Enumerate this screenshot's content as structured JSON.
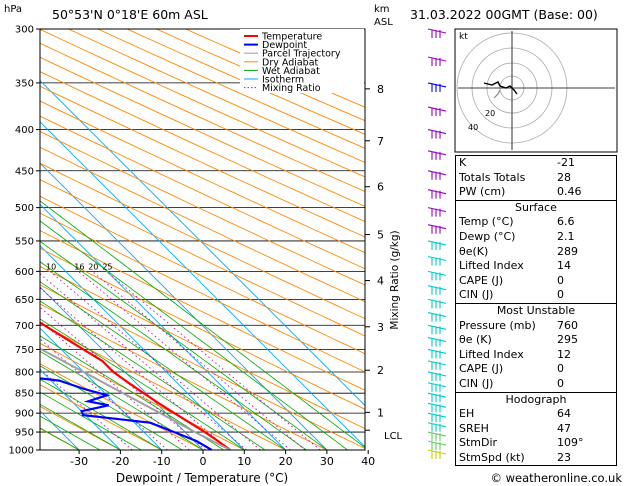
{
  "header": {
    "location": "50°53'N 0°18'E 60m ASL",
    "datetime": "31.03.2022 00GMT (Base: 00)",
    "p_unit": "hPa",
    "km_unit": "km",
    "asl_unit": "ASL",
    "lcl_label": "LCL",
    "mixing_ratio_axis": "Mixing Ratio (g/kg)",
    "credit": "© weatheronline.co.uk"
  },
  "chart_data": {
    "type": "line",
    "xlabel": "Dewpoint / Temperature (°C)",
    "ylabel": "hPa",
    "xlim": [
      -35,
      40
    ],
    "ylim": [
      1000,
      300
    ],
    "x_ticks": [
      -30,
      -20,
      -10,
      0,
      10,
      20,
      30,
      40
    ],
    "pressure_levels": [
      300,
      350,
      400,
      450,
      500,
      550,
      600,
      650,
      700,
      750,
      800,
      850,
      900,
      950,
      1000
    ],
    "height_ticks_km": [
      {
        "label": "8",
        "p": 356
      },
      {
        "label": "7",
        "p": 413
      },
      {
        "label": "6",
        "p": 471
      },
      {
        "label": "5",
        "p": 540
      },
      {
        "label": "4",
        "p": 616
      },
      {
        "label": "3",
        "p": 703
      },
      {
        "label": "2",
        "p": 796
      },
      {
        "label": "1",
        "p": 898
      }
    ],
    "mixing_ratio_labels": [
      "1",
      "2",
      "3",
      "4",
      "6",
      "8",
      "10",
      "16",
      "20",
      "25"
    ],
    "legend": [
      "Temperature",
      "Dewpoint",
      "Parcel Trajectory",
      "Dry Adiabat",
      "Wet Adiabat",
      "Isotherm",
      "Mixing Ratio"
    ],
    "series": [
      {
        "name": "Temperature",
        "color": "#ff0000",
        "points": [
          [
            1000,
            6.6
          ],
          [
            975,
            5.8
          ],
          [
            950,
            4.8
          ],
          [
            925,
            3.4
          ],
          [
            900,
            2.0
          ],
          [
            875,
            0.6
          ],
          [
            850,
            -0.6
          ],
          [
            825,
            -1.8
          ],
          [
            800,
            -2.8
          ],
          [
            775,
            -2.8
          ],
          [
            750,
            -4.6
          ],
          [
            700,
            -8.2
          ],
          [
            650,
            -12.4
          ],
          [
            600,
            -16.8
          ],
          [
            550,
            -21.4
          ],
          [
            500,
            -25.8
          ],
          [
            450,
            -31.0
          ],
          [
            400,
            -37.2
          ],
          [
            350,
            -44.6
          ],
          [
            300,
            -52.4
          ]
        ]
      },
      {
        "name": "Dewpoint",
        "color": "#0000ff",
        "points": [
          [
            1000,
            2.1
          ],
          [
            975,
            0.6
          ],
          [
            950,
            -2.6
          ],
          [
            925,
            -6.2
          ],
          [
            905,
            -20.6
          ],
          [
            895,
            -20.0
          ],
          [
            880,
            -12.0
          ],
          [
            870,
            -16.0
          ],
          [
            855,
            -10.0
          ],
          [
            840,
            -14.0
          ],
          [
            820,
            -18.0
          ],
          [
            810,
            -26.0
          ],
          [
            800,
            -22.0
          ],
          [
            775,
            -24.0
          ],
          [
            750,
            -26.6
          ],
          [
            700,
            -31.0
          ],
          [
            650,
            -34.0
          ],
          [
            640,
            -27.0
          ],
          [
            600,
            -32.0
          ],
          [
            575,
            -40.0
          ],
          [
            550,
            -41.0
          ],
          [
            525,
            -45.0
          ],
          [
            500,
            -55.0
          ],
          [
            450,
            -59.0
          ],
          [
            400,
            -64.0
          ],
          [
            350,
            -69.0
          ],
          [
            300,
            -76.0
          ]
        ]
      },
      {
        "name": "Parcel Trajectory",
        "color": "#a0a0a0",
        "points": [
          [
            1000,
            6.6
          ],
          [
            950,
            2.4
          ],
          [
            900,
            -1.4
          ],
          [
            850,
            -5.6
          ],
          [
            800,
            -10.0
          ],
          [
            750,
            -14.8
          ],
          [
            700,
            -19.6
          ],
          [
            650,
            -24.6
          ],
          [
            600,
            -30.0
          ],
          [
            550,
            -35.4
          ],
          [
            500,
            -41.2
          ],
          [
            450,
            -47.4
          ],
          [
            400,
            -54.2
          ],
          [
            350,
            -61.6
          ],
          [
            300,
            -69.8
          ]
        ]
      }
    ]
  },
  "wind_barb_colors": [
    "#9900cc",
    "#0000ff",
    "#00cccc",
    "#66cc66",
    "#cccc00"
  ],
  "hodograph": {
    "label": "kt",
    "ring_labels": [
      "20",
      "40"
    ],
    "color": "#000000"
  },
  "indices": {
    "basic": [
      {
        "k": "K",
        "v": "-21"
      },
      {
        "k": "Totals Totals",
        "v": "28"
      },
      {
        "k": "PW (cm)",
        "v": "0.46"
      }
    ],
    "surface_title": "Surface",
    "surface": [
      {
        "k": "Temp (°C)",
        "v": "6.6"
      },
      {
        "k": "Dewp (°C)",
        "v": "2.1"
      },
      {
        "k": "θe(K)",
        "v": "289"
      },
      {
        "k": "Lifted Index",
        "v": "14"
      },
      {
        "k": "CAPE (J)",
        "v": "0"
      },
      {
        "k": "CIN (J)",
        "v": "0"
      }
    ],
    "unstable_title": "Most Unstable",
    "unstable": [
      {
        "k": "Pressure (mb)",
        "v": "760"
      },
      {
        "k": "θe (K)",
        "v": "295"
      },
      {
        "k": "Lifted Index",
        "v": "12"
      },
      {
        "k": "CAPE (J)",
        "v": "0"
      },
      {
        "k": "CIN (J)",
        "v": "0"
      }
    ],
    "hodo_title": "Hodograph",
    "hodo": [
      {
        "k": "EH",
        "v": "64"
      },
      {
        "k": "SREH",
        "v": "47"
      },
      {
        "k": "StmDir",
        "v": "109°"
      },
      {
        "k": "StmSpd (kt)",
        "v": "23"
      }
    ]
  }
}
